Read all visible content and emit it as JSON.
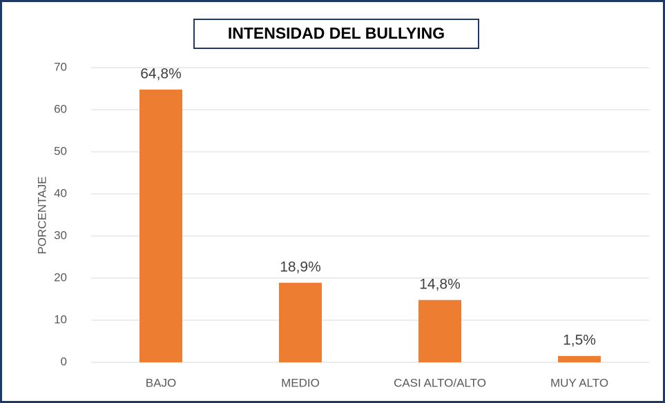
{
  "chart_data": {
    "type": "bar",
    "title": "INTENSIDAD DEL BULLYING",
    "y_label": "PORCENTAJE",
    "categories": [
      "BAJO",
      "MEDIO",
      "CASI ALTO/ALTO",
      "MUY ALTO"
    ],
    "values": [
      64.8,
      18.9,
      14.8,
      1.5
    ],
    "value_labels": [
      "64,8%",
      "18,9%",
      "14,8%",
      "1,5%"
    ],
    "color": "#ed7d31",
    "ylim": [
      0,
      70
    ],
    "yticks": [
      0,
      10,
      20,
      30,
      40,
      50,
      60,
      70
    ],
    "grid": true
  }
}
